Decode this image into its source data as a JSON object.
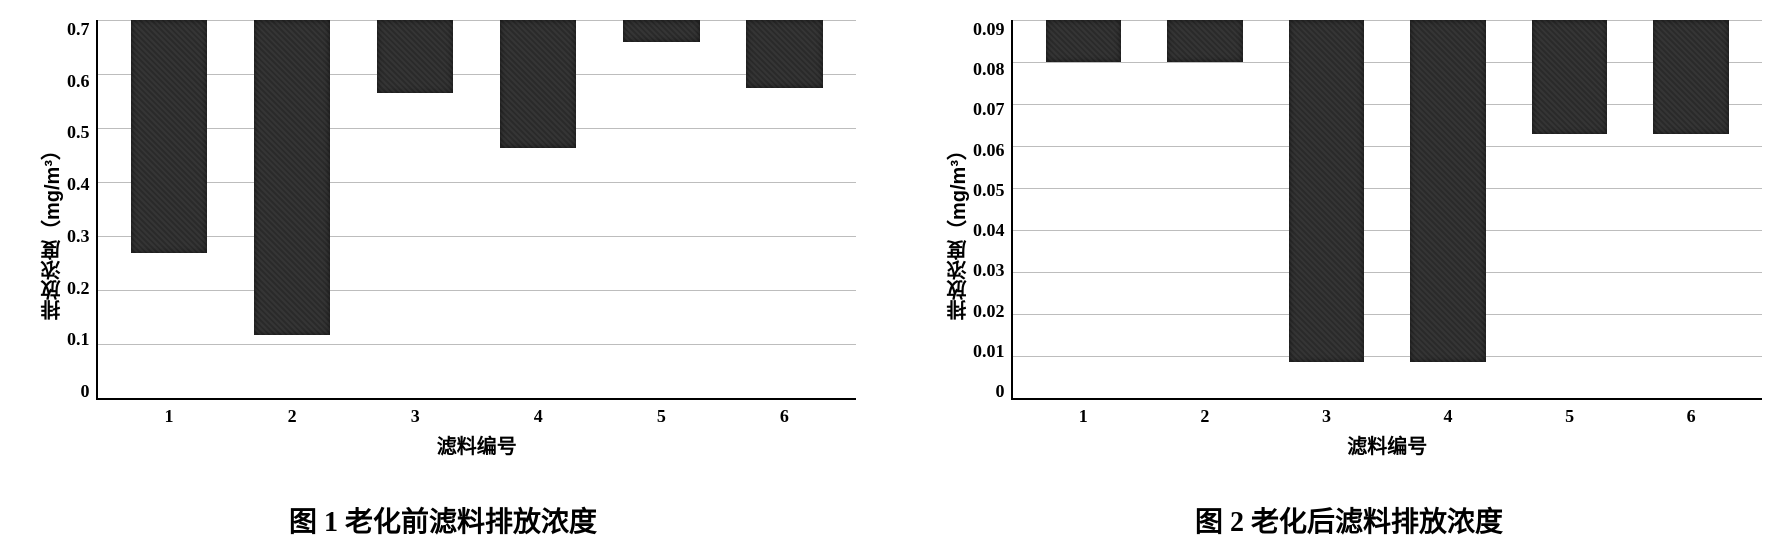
{
  "chart1": {
    "type": "bar",
    "y_axis_label": "排放浓度（mg/m³）",
    "x_axis_label": "滤料编号",
    "categories": [
      "1",
      "2",
      "3",
      "4",
      "5",
      "6"
    ],
    "values": [
      0.43,
      0.58,
      0.135,
      0.235,
      0.04,
      0.125
    ],
    "ylim": [
      0,
      0.7
    ],
    "ytick_step": 0.1,
    "y_ticks": [
      "0.7",
      "0.6",
      "0.5",
      "0.4",
      "0.3",
      "0.2",
      "0.1",
      "0"
    ],
    "bar_color": "#2a2a2a",
    "grid_color": "#bdbdbd",
    "background_color": "#ffffff",
    "bar_width": 0.62,
    "tick_fontsize": 18,
    "label_fontsize": 20,
    "caption": "图 1 老化前滤料排放浓度",
    "caption_fontsize": 28
  },
  "chart2": {
    "type": "bar",
    "y_axis_label": "排放浓度（mg/m³）",
    "x_axis_label": "滤料编号",
    "categories": [
      "1",
      "2",
      "3",
      "4",
      "5",
      "6"
    ],
    "values": [
      0.01,
      0.01,
      0.081,
      0.081,
      0.027,
      0.027
    ],
    "ylim": [
      0,
      0.09
    ],
    "ytick_step": 0.01,
    "y_ticks": [
      "0.09",
      "0.08",
      "0.07",
      "0.06",
      "0.05",
      "0.04",
      "0.03",
      "0.02",
      "0.01",
      "0"
    ],
    "bar_color": "#2a2a2a",
    "grid_color": "#bdbdbd",
    "background_color": "#ffffff",
    "bar_width": 0.62,
    "tick_fontsize": 18,
    "label_fontsize": 20,
    "caption": "图 2 老化后滤料排放浓度",
    "caption_fontsize": 28
  }
}
